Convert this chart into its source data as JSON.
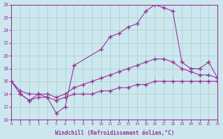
{
  "xlabel": "Windchill (Refroidissement éolien,°C)",
  "xlim": [
    0,
    23
  ],
  "ylim": [
    10,
    28
  ],
  "xticks": [
    0,
    1,
    2,
    3,
    4,
    5,
    6,
    7,
    8,
    9,
    10,
    11,
    12,
    13,
    14,
    15,
    16,
    17,
    18,
    19,
    20,
    21,
    22,
    23
  ],
  "yticks": [
    10,
    12,
    14,
    16,
    18,
    20,
    22,
    24,
    26,
    28
  ],
  "background_color": "#cce8ee",
  "line_color": "#993399",
  "grid_color": "#aacccc",
  "line1_x": [
    0,
    1,
    2,
    3,
    4,
    5,
    6,
    7,
    10,
    11,
    12,
    13,
    14,
    15,
    16,
    17,
    18,
    19,
    20,
    21,
    22,
    23
  ],
  "line1_y": [
    16,
    14,
    13,
    14,
    13.5,
    11,
    12,
    18.5,
    21,
    23,
    23.5,
    24.5,
    25,
    27,
    28,
    27.5,
    27,
    19,
    18,
    18,
    19,
    16.5
  ],
  "line2_x": [
    0,
    1,
    2,
    3,
    4,
    5,
    6,
    7,
    8,
    9,
    10,
    11,
    12,
    13,
    14,
    15,
    16,
    17,
    18,
    19,
    20,
    21,
    22,
    23
  ],
  "line2_y": [
    16,
    14.5,
    14,
    14,
    14,
    13.5,
    14,
    15,
    15.5,
    16,
    16.5,
    17,
    17.5,
    18,
    18.5,
    19,
    19.5,
    19.5,
    19,
    18,
    17.5,
    17,
    17,
    16.5
  ],
  "line3_x": [
    0,
    1,
    2,
    3,
    4,
    5,
    6,
    7,
    8,
    9,
    10,
    11,
    12,
    13,
    14,
    15,
    16,
    17,
    18,
    19,
    20,
    21,
    22,
    23
  ],
  "line3_y": [
    16,
    14,
    13,
    13.5,
    13.5,
    13,
    13.5,
    14,
    14,
    14,
    14.5,
    14.5,
    15,
    15,
    15.5,
    15.5,
    16,
    16,
    16,
    16,
    16,
    16,
    16,
    16
  ]
}
